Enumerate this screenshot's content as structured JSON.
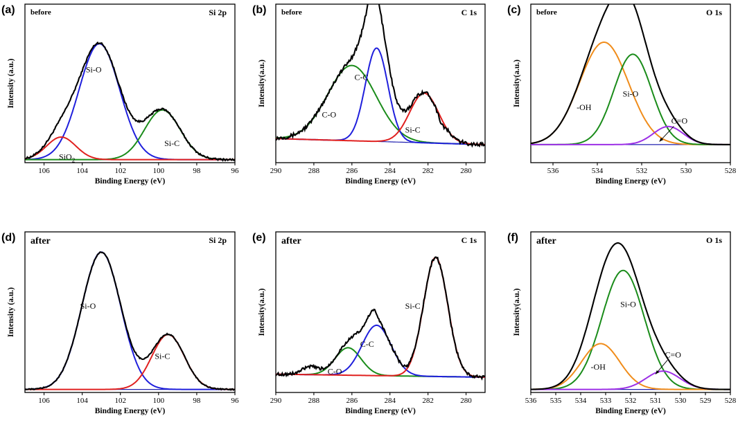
{
  "figure": {
    "axis_color": "#000000",
    "colors": {
      "envelope": "#000000",
      "blue": "#1f1fdc",
      "green": "#1a8c1a",
      "red": "#e0201f",
      "orange": "#f08c1a",
      "purple": "#9c2fe6",
      "baseline": "#2020b0"
    }
  },
  "chart_data": [
    {
      "type": "line",
      "panel_label": "(a)",
      "condition": "before",
      "region": "Si 2p",
      "xlabel": "Binding Energy (eV)",
      "ylabel": "Intensity (a.u.)",
      "xlim": [
        107,
        96
      ],
      "ylim": [
        0,
        1
      ],
      "xticks": [
        106,
        104,
        102,
        100,
        98,
        96
      ],
      "xtick_labels": [
        "106",
        "104",
        "102",
        "100",
        "98",
        "96"
      ],
      "baseline": 0.02,
      "components": [
        {
          "name": "Si-O",
          "label": "Si-O",
          "color": "blue",
          "center": 103.1,
          "amplitude": 0.77,
          "fwhm": 2.5,
          "label_at": [
            103.4,
            0.6
          ]
        },
        {
          "name": "Si-C",
          "label": "Si-C",
          "color": "green",
          "center": 99.8,
          "amplitude": 0.33,
          "fwhm": 2.2,
          "label_at": [
            99.3,
            0.11
          ]
        },
        {
          "name": "SiO2",
          "label": "SiO",
          "label_sub": "2",
          "color": "red",
          "center": 105.1,
          "amplitude": 0.15,
          "fwhm": 1.8,
          "label_at": [
            104.8,
            0.02
          ]
        }
      ],
      "envelope": {
        "noise": 0.012,
        "bumps": []
      }
    },
    {
      "type": "line",
      "panel_label": "(b)",
      "condition": "before",
      "region": "C 1s",
      "xlabel": "Binding Energy (eV)",
      "ylabel": "Intensity(a.u.)",
      "xlim": [
        290,
        279
      ],
      "ylim": [
        0,
        1
      ],
      "xticks": [
        290,
        288,
        286,
        284,
        282,
        280
      ],
      "xtick_labels": [
        "290",
        "288",
        "286",
        "284",
        "282",
        "280"
      ],
      "baseline": 0.12,
      "baseline_slope": 0.04,
      "components": [
        {
          "name": "C-O",
          "label": "C-O",
          "color": "green",
          "center": 286.0,
          "amplitude": 0.5,
          "fwhm": 3.0,
          "label_at": [
            287.2,
            0.3
          ]
        },
        {
          "name": "C-C",
          "label": "C-C",
          "color": "blue",
          "center": 284.7,
          "amplitude": 0.62,
          "fwhm": 1.4,
          "label_at": [
            285.5,
            0.55
          ]
        },
        {
          "name": "Si-C",
          "label": "Si-C",
          "color": "red",
          "center": 282.2,
          "amplitude": 0.33,
          "fwhm": 1.8,
          "label_at": [
            282.8,
            0.2
          ]
        }
      ],
      "envelope": {
        "noise": 0.025,
        "bumps": [
          [
            284.9,
            0.1,
            0.5
          ],
          [
            281.3,
            -0.03,
            0.4
          ]
        ]
      }
    },
    {
      "type": "line",
      "panel_label": "(c)",
      "condition": "before",
      "region": "O 1s",
      "xlabel": "Binding Energy (eV)",
      "ylabel": "Intensity(a.u.)",
      "xlim": [
        537,
        528
      ],
      "ylim": [
        0,
        1
      ],
      "xticks": [
        536,
        534,
        532,
        530,
        528
      ],
      "xtick_labels": [
        "536",
        "534",
        "532",
        "530",
        "528"
      ],
      "baseline": 0.12,
      "components": [
        {
          "name": "-OH",
          "label": "-OH",
          "color": "orange",
          "center": 533.7,
          "amplitude": 0.68,
          "fwhm": 2.6,
          "label_at": [
            534.6,
            0.35
          ]
        },
        {
          "name": "Si-O",
          "label": "Si-O",
          "color": "green",
          "center": 532.4,
          "amplitude": 0.6,
          "fwhm": 2.0,
          "label_at": [
            532.5,
            0.44
          ]
        },
        {
          "name": "C=O",
          "label": "C=O",
          "color": "purple",
          "center": 530.8,
          "amplitude": 0.12,
          "fwhm": 1.6,
          "label_at": [
            530.3,
            0.26
          ],
          "arrow_to": [
            531.2,
            0.14
          ]
        }
      ],
      "envelope": {
        "noise": 0.0,
        "bumps": []
      }
    },
    {
      "type": "line",
      "panel_label": "(d)",
      "condition": "after",
      "region": "Si 2p",
      "xlabel": "Binding Energy (eV)",
      "ylabel": "Intensity (a.u.)",
      "xlim": [
        107,
        96
      ],
      "ylim": [
        0,
        1
      ],
      "xticks": [
        106,
        104,
        102,
        100,
        98,
        96
      ],
      "xtick_labels": [
        "106",
        "104",
        "102",
        "100",
        "98",
        "96"
      ],
      "baseline": 0.02,
      "components": [
        {
          "name": "Si-O",
          "label": "Si-O",
          "color": "blue",
          "center": 103.0,
          "amplitude": 0.9,
          "fwhm": 2.4,
          "label_at": [
            103.7,
            0.55
          ]
        },
        {
          "name": "Si-C",
          "label": "Si-C",
          "color": "red",
          "center": 99.5,
          "amplitude": 0.36,
          "fwhm": 2.0,
          "label_at": [
            99.8,
            0.22
          ]
        }
      ],
      "envelope": {
        "noise": 0.008,
        "bumps": []
      }
    },
    {
      "type": "line",
      "panel_label": "(e)",
      "condition": "after",
      "region": "C 1s",
      "xlabel": "Binding Energy (eV)",
      "ylabel": "Intensity(a.u.)",
      "xlim": [
        290,
        279
      ],
      "ylim": [
        0,
        1
      ],
      "xticks": [
        290,
        288,
        286,
        284,
        282,
        280
      ],
      "xtick_labels": [
        "290",
        "288",
        "286",
        "284",
        "282",
        "280"
      ],
      "baseline": 0.1,
      "baseline_slope": 0.02,
      "components": [
        {
          "name": "C-O",
          "label": "C-O",
          "color": "green",
          "center": 286.2,
          "amplitude": 0.18,
          "fwhm": 1.6,
          "label_at": [
            286.9,
            0.12
          ]
        },
        {
          "name": "C-C",
          "label": "C-C",
          "color": "blue",
          "center": 284.7,
          "amplitude": 0.33,
          "fwhm": 1.8,
          "label_at": [
            285.2,
            0.3
          ]
        },
        {
          "name": "Si-C",
          "label": "Si-C",
          "color": "red",
          "center": 281.6,
          "amplitude": 0.78,
          "fwhm": 1.5,
          "label_at": [
            282.8,
            0.55
          ]
        }
      ],
      "envelope": {
        "noise": 0.02,
        "bumps": [
          [
            288.2,
            0.05,
            1.0
          ],
          [
            284.9,
            0.08,
            0.6
          ],
          [
            283.2,
            -0.02,
            0.6
          ]
        ]
      }
    },
    {
      "type": "line",
      "panel_label": "(f)",
      "condition": "after",
      "region": "O 1s",
      "xlabel": "Binding Energy (eV)",
      "ylabel": "Intensity(a.u.)",
      "xlim": [
        536,
        528
      ],
      "ylim": [
        0,
        1
      ],
      "xticks": [
        536,
        535,
        534,
        533,
        532,
        531,
        530,
        529,
        528
      ],
      "xtick_labels": [
        "536",
        "535",
        "534",
        "533",
        "532",
        "531",
        "530",
        "529",
        "528"
      ],
      "baseline": 0.02,
      "components": [
        {
          "name": "Si-O",
          "label": "Si-O",
          "color": "green",
          "center": 532.3,
          "amplitude": 0.78,
          "fwhm": 2.0,
          "label_at": [
            532.1,
            0.56
          ]
        },
        {
          "name": "-OH",
          "label": "-OH",
          "color": "orange",
          "center": 533.2,
          "amplitude": 0.3,
          "fwhm": 1.8,
          "label_at": [
            533.3,
            0.15
          ]
        },
        {
          "name": "C=O",
          "label": "C=O",
          "color": "purple",
          "center": 530.7,
          "amplitude": 0.12,
          "fwhm": 1.6,
          "label_at": [
            530.3,
            0.23
          ],
          "arrow_to": [
            531.0,
            0.12
          ]
        }
      ],
      "envelope": {
        "noise": 0.0,
        "bumps": []
      }
    }
  ]
}
